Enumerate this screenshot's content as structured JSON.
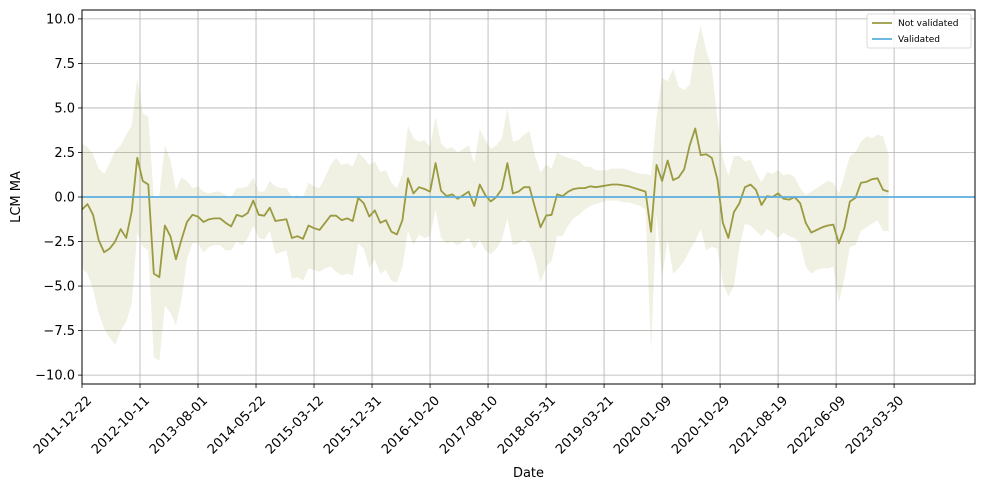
{
  "chart_data": {
    "type": "line",
    "title": "",
    "xlabel": "Date",
    "ylabel": "LCM MA",
    "ylim": [
      -10.5,
      10.5
    ],
    "yticks": [
      -10.0,
      -7.5,
      -5.0,
      -2.5,
      0.0,
      2.5,
      5.0,
      7.5,
      10.0
    ],
    "ytick_labels": [
      "−10.0",
      "−7.5",
      "−5.0",
      "−2.5",
      "0.0",
      "2.5",
      "5.0",
      "7.5",
      "10.0"
    ],
    "xlim": [
      "2011-12-22",
      "2024-05-13"
    ],
    "xticks": [
      "2011-12-22",
      "2012-10-11",
      "2013-08-01",
      "2014-05-22",
      "2015-03-12",
      "2015-12-31",
      "2016-10-20",
      "2017-08-10",
      "2018-05-31",
      "2019-03-21",
      "2020-01-09",
      "2020-10-29",
      "2021-08-19",
      "2022-06-09",
      "2023-03-30"
    ],
    "grid": true,
    "legend_position": "top-right",
    "series": [
      {
        "name": "Not validated",
        "color": "#9a9a40",
        "band_color": "#9a9a40",
        "points": [
          [
            "2011-12-22",
            -0.7
          ],
          [
            "2012-01-19",
            -0.4
          ],
          [
            "2012-02-16",
            -1.0
          ],
          [
            "2012-03-15",
            -2.4
          ],
          [
            "2012-04-12",
            -3.1
          ],
          [
            "2012-05-10",
            -2.9
          ],
          [
            "2012-06-07",
            -2.5
          ],
          [
            "2012-07-05",
            -1.8
          ],
          [
            "2012-08-02",
            -2.3
          ],
          [
            "2012-08-30",
            -0.8
          ],
          [
            "2012-09-27",
            2.2
          ],
          [
            "2012-10-25",
            0.9
          ],
          [
            "2012-11-22",
            0.7
          ],
          [
            "2012-12-20",
            -4.3
          ],
          [
            "2013-01-17",
            -4.5
          ],
          [
            "2013-02-14",
            -1.6
          ],
          [
            "2013-03-14",
            -2.2
          ],
          [
            "2013-04-11",
            -3.5
          ],
          [
            "2013-05-09",
            -2.4
          ],
          [
            "2013-06-06",
            -1.4
          ],
          [
            "2013-07-04",
            -1.0
          ],
          [
            "2013-08-01",
            -1.1
          ],
          [
            "2013-08-29",
            -1.4
          ],
          [
            "2013-09-26",
            -1.25
          ],
          [
            "2013-10-24",
            -1.2
          ],
          [
            "2013-11-21",
            -1.2
          ],
          [
            "2013-12-19",
            -1.45
          ],
          [
            "2014-01-16",
            -1.65
          ],
          [
            "2014-02-13",
            -1.0
          ],
          [
            "2014-03-13",
            -1.1
          ],
          [
            "2014-04-10",
            -0.9
          ],
          [
            "2014-05-08",
            -0.2
          ],
          [
            "2014-06-05",
            -1.0
          ],
          [
            "2014-07-03",
            -1.05
          ],
          [
            "2014-07-31",
            -0.6
          ],
          [
            "2014-08-28",
            -1.35
          ],
          [
            "2014-09-25",
            -1.3
          ],
          [
            "2014-10-23",
            -1.25
          ],
          [
            "2014-11-20",
            -2.3
          ],
          [
            "2014-12-18",
            -2.2
          ],
          [
            "2015-01-15",
            -2.35
          ],
          [
            "2015-02-12",
            -1.6
          ],
          [
            "2015-03-12",
            -1.75
          ],
          [
            "2015-04-09",
            -1.85
          ],
          [
            "2015-05-07",
            -1.45
          ],
          [
            "2015-06-04",
            -1.05
          ],
          [
            "2015-07-02",
            -1.05
          ],
          [
            "2015-07-30",
            -1.3
          ],
          [
            "2015-08-27",
            -1.2
          ],
          [
            "2015-09-24",
            -1.35
          ],
          [
            "2015-10-22",
            -0.05
          ],
          [
            "2015-11-19",
            -0.35
          ],
          [
            "2015-12-17",
            -1.1
          ],
          [
            "2016-01-14",
            -0.75
          ],
          [
            "2016-02-11",
            -1.45
          ],
          [
            "2016-03-10",
            -1.3
          ],
          [
            "2016-04-07",
            -1.95
          ],
          [
            "2016-05-05",
            -2.1
          ],
          [
            "2016-06-02",
            -1.3
          ],
          [
            "2016-06-30",
            1.05
          ],
          [
            "2016-07-28",
            0.2
          ],
          [
            "2016-08-25",
            0.55
          ],
          [
            "2016-09-22",
            0.45
          ],
          [
            "2016-10-20",
            0.3
          ],
          [
            "2016-11-17",
            1.9
          ],
          [
            "2016-12-15",
            0.35
          ],
          [
            "2017-01-12",
            0.05
          ],
          [
            "2017-02-09",
            0.15
          ],
          [
            "2017-03-09",
            -0.1
          ],
          [
            "2017-04-06",
            0.1
          ],
          [
            "2017-05-04",
            0.3
          ],
          [
            "2017-06-01",
            -0.5
          ],
          [
            "2017-06-29",
            0.7
          ],
          [
            "2017-07-27",
            0.1
          ],
          [
            "2017-08-24",
            -0.25
          ],
          [
            "2017-09-21",
            0.0
          ],
          [
            "2017-10-19",
            0.45
          ],
          [
            "2017-11-16",
            1.9
          ],
          [
            "2017-12-14",
            0.2
          ],
          [
            "2018-01-11",
            0.3
          ],
          [
            "2018-02-08",
            0.55
          ],
          [
            "2018-03-08",
            0.55
          ],
          [
            "2018-04-05",
            -0.6
          ],
          [
            "2018-05-03",
            -1.7
          ],
          [
            "2018-05-31",
            -1.05
          ],
          [
            "2018-06-28",
            -1.0
          ],
          [
            "2018-07-26",
            0.15
          ],
          [
            "2018-08-23",
            0.05
          ],
          [
            "2018-09-20",
            0.3
          ],
          [
            "2018-10-18",
            0.45
          ],
          [
            "2018-11-15",
            0.5
          ],
          [
            "2018-12-13",
            0.5
          ],
          [
            "2019-01-10",
            0.6
          ],
          [
            "2019-02-07",
            0.55
          ],
          [
            "2019-03-07",
            0.6
          ],
          [
            "2019-04-04",
            0.65
          ],
          [
            "2019-05-02",
            0.7
          ],
          [
            "2019-05-30",
            0.7
          ],
          [
            "2019-06-27",
            0.65
          ],
          [
            "2019-07-25",
            0.6
          ],
          [
            "2019-08-22",
            0.5
          ],
          [
            "2019-09-19",
            0.4
          ],
          [
            "2019-10-17",
            0.3
          ],
          [
            "2019-11-14",
            -1.95
          ],
          [
            "2019-12-12",
            1.8
          ],
          [
            "2020-01-09",
            0.9
          ],
          [
            "2020-02-06",
            2.05
          ],
          [
            "2020-03-05",
            0.95
          ],
          [
            "2020-04-02",
            1.1
          ],
          [
            "2020-04-30",
            1.55
          ],
          [
            "2020-05-28",
            2.9
          ],
          [
            "2020-06-25",
            3.85
          ],
          [
            "2020-07-23",
            2.35
          ],
          [
            "2020-08-20",
            2.4
          ],
          [
            "2020-09-17",
            2.2
          ],
          [
            "2020-10-15",
            1.0
          ],
          [
            "2020-11-12",
            -1.45
          ],
          [
            "2020-12-10",
            -2.3
          ],
          [
            "2021-01-07",
            -0.85
          ],
          [
            "2021-02-04",
            -0.35
          ],
          [
            "2021-03-04",
            0.55
          ],
          [
            "2021-04-01",
            0.7
          ],
          [
            "2021-04-29",
            0.4
          ],
          [
            "2021-05-27",
            -0.45
          ],
          [
            "2021-06-24",
            0.05
          ],
          [
            "2021-07-22",
            0.0
          ],
          [
            "2021-08-19",
            0.2
          ],
          [
            "2021-09-16",
            -0.1
          ],
          [
            "2021-10-14",
            -0.15
          ],
          [
            "2021-11-11",
            0.0
          ],
          [
            "2021-12-09",
            -0.35
          ],
          [
            "2022-01-06",
            -1.45
          ],
          [
            "2022-02-03",
            -2.0
          ],
          [
            "2022-03-03",
            -1.85
          ],
          [
            "2022-03-31",
            -1.7
          ],
          [
            "2022-04-28",
            -1.6
          ],
          [
            "2022-05-26",
            -1.55
          ],
          [
            "2022-06-23",
            -2.6
          ],
          [
            "2022-07-21",
            -1.75
          ],
          [
            "2022-08-18",
            -0.25
          ],
          [
            "2022-09-15",
            -0.05
          ],
          [
            "2022-10-13",
            0.8
          ],
          [
            "2022-11-10",
            0.85
          ],
          [
            "2022-12-08",
            1.0
          ],
          [
            "2023-01-05",
            1.05
          ],
          [
            "2023-02-02",
            0.4
          ],
          [
            "2023-03-02",
            0.3
          ]
        ],
        "band": [
          [
            3.0,
            -4.0
          ],
          [
            2.8,
            -4.3
          ],
          [
            2.4,
            -5.2
          ],
          [
            1.6,
            -6.5
          ],
          [
            1.3,
            -7.4
          ],
          [
            1.9,
            -7.9
          ],
          [
            2.6,
            -8.3
          ],
          [
            2.9,
            -7.5
          ],
          [
            3.5,
            -7.0
          ],
          [
            4.0,
            -6.0
          ],
          [
            6.7,
            -2.0
          ],
          [
            4.7,
            -2.8
          ],
          [
            4.5,
            -3.0
          ],
          [
            -0.1,
            -9.0
          ],
          [
            0.1,
            -9.2
          ],
          [
            2.9,
            -6.1
          ],
          [
            2.1,
            -6.5
          ],
          [
            0.4,
            -7.2
          ],
          [
            1.1,
            -5.8
          ],
          [
            0.9,
            -3.5
          ],
          [
            0.5,
            -2.6
          ],
          [
            0.6,
            -2.6
          ],
          [
            0.3,
            -3.1
          ],
          [
            0.2,
            -2.8
          ],
          [
            0.3,
            -2.7
          ],
          [
            0.3,
            -2.7
          ],
          [
            0.1,
            -3.0
          ],
          [
            0.0,
            -3.0
          ],
          [
            0.5,
            -2.5
          ],
          [
            0.5,
            -2.7
          ],
          [
            0.6,
            -2.3
          ],
          [
            1.1,
            -1.6
          ],
          [
            0.3,
            -2.3
          ],
          [
            0.3,
            -2.4
          ],
          [
            0.9,
            -1.9
          ],
          [
            0.6,
            -3.2
          ],
          [
            0.5,
            -3.1
          ],
          [
            0.5,
            -3.0
          ],
          [
            0.0,
            -4.6
          ],
          [
            0.1,
            -4.5
          ],
          [
            0.0,
            -4.7
          ],
          [
            0.8,
            -4.0
          ],
          [
            0.6,
            -4.1
          ],
          [
            0.5,
            -4.2
          ],
          [
            1.1,
            -4.0
          ],
          [
            1.8,
            -3.9
          ],
          [
            2.2,
            -4.2
          ],
          [
            1.8,
            -4.4
          ],
          [
            1.9,
            -4.3
          ],
          [
            1.7,
            -4.4
          ],
          [
            2.5,
            -2.6
          ],
          [
            2.2,
            -2.9
          ],
          [
            1.8,
            -4.0
          ],
          [
            2.0,
            -3.5
          ],
          [
            1.4,
            -4.3
          ],
          [
            1.5,
            -4.1
          ],
          [
            0.8,
            -4.7
          ],
          [
            0.5,
            -4.8
          ],
          [
            1.3,
            -3.9
          ],
          [
            4.0,
            -1.9
          ],
          [
            3.3,
            -2.7
          ],
          [
            3.1,
            -2.1
          ],
          [
            3.2,
            -2.3
          ],
          [
            2.8,
            -2.2
          ],
          [
            4.5,
            -0.7
          ],
          [
            3.0,
            -2.3
          ],
          [
            2.7,
            -2.6
          ],
          [
            2.8,
            -2.5
          ],
          [
            2.5,
            -2.7
          ],
          [
            2.7,
            -2.5
          ],
          [
            2.9,
            -2.3
          ],
          [
            1.9,
            -2.9
          ],
          [
            3.8,
            -2.4
          ],
          [
            3.2,
            -3.0
          ],
          [
            2.7,
            -3.2
          ],
          [
            2.9,
            -2.9
          ],
          [
            3.3,
            -2.4
          ],
          [
            5.0,
            -1.2
          ],
          [
            3.1,
            -2.7
          ],
          [
            3.2,
            -2.6
          ],
          [
            3.5,
            -2.4
          ],
          [
            3.7,
            -2.6
          ],
          [
            2.3,
            -3.5
          ],
          [
            1.4,
            -4.8
          ],
          [
            1.8,
            -3.9
          ],
          [
            1.6,
            -3.6
          ],
          [
            2.5,
            -2.2
          ],
          [
            2.3,
            -2.2
          ],
          [
            2.2,
            -1.6
          ],
          [
            2.1,
            -1.2
          ],
          [
            2.0,
            -1.0
          ],
          [
            1.7,
            -0.7
          ],
          [
            1.7,
            -0.5
          ],
          [
            1.5,
            -0.4
          ],
          [
            1.5,
            -0.3
          ],
          [
            1.5,
            -0.2
          ],
          [
            1.6,
            -0.2
          ],
          [
            1.6,
            -0.2
          ],
          [
            1.6,
            -0.3
          ],
          [
            1.5,
            -0.3
          ],
          [
            1.4,
            -0.4
          ],
          [
            1.3,
            -0.5
          ],
          [
            1.3,
            -0.7
          ],
          [
            1.2,
            -8.6
          ],
          [
            4.5,
            -1.0
          ],
          [
            6.7,
            -4.5
          ],
          [
            6.5,
            -2.4
          ],
          [
            7.2,
            -4.3
          ],
          [
            6.2,
            -4.0
          ],
          [
            6.0,
            -3.6
          ],
          [
            6.3,
            -3.0
          ],
          [
            8.3,
            -2.5
          ],
          [
            9.6,
            -1.8
          ],
          [
            8.2,
            -3.0
          ],
          [
            7.3,
            -2.8
          ],
          [
            4.4,
            -2.9
          ],
          [
            2.2,
            -4.8
          ],
          [
            1.2,
            -5.6
          ],
          [
            2.3,
            -5.0
          ],
          [
            2.3,
            -2.8
          ],
          [
            2.0,
            -1.5
          ],
          [
            2.1,
            -1.6
          ],
          [
            1.4,
            -1.9
          ],
          [
            0.8,
            -2.2
          ],
          [
            1.4,
            -1.8
          ],
          [
            1.3,
            -2.0
          ],
          [
            1.5,
            -2.3
          ],
          [
            1.2,
            -2.0
          ],
          [
            1.3,
            -2.2
          ],
          [
            1.1,
            -2.3
          ],
          [
            0.5,
            -2.6
          ],
          [
            0.1,
            -3.9
          ],
          [
            0.3,
            -4.3
          ],
          [
            0.5,
            -4.1
          ],
          [
            0.7,
            -4.0
          ],
          [
            0.9,
            -4.0
          ],
          [
            0.8,
            -3.9
          ],
          [
            0.2,
            -5.9
          ],
          [
            1.2,
            -4.6
          ],
          [
            2.3,
            -2.8
          ],
          [
            2.5,
            -2.7
          ],
          [
            3.1,
            -1.9
          ],
          [
            3.4,
            -1.7
          ],
          [
            3.3,
            -1.5
          ],
          [
            3.5,
            -1.3
          ],
          [
            3.4,
            -1.9
          ],
          [
            2.4,
            -1.9
          ]
        ]
      },
      {
        "name": "Validated",
        "color": "#5aaee0",
        "points": [
          [
            "2011-12-22",
            0.0
          ],
          [
            "2023-03-02",
            0.0
          ]
        ]
      }
    ]
  }
}
